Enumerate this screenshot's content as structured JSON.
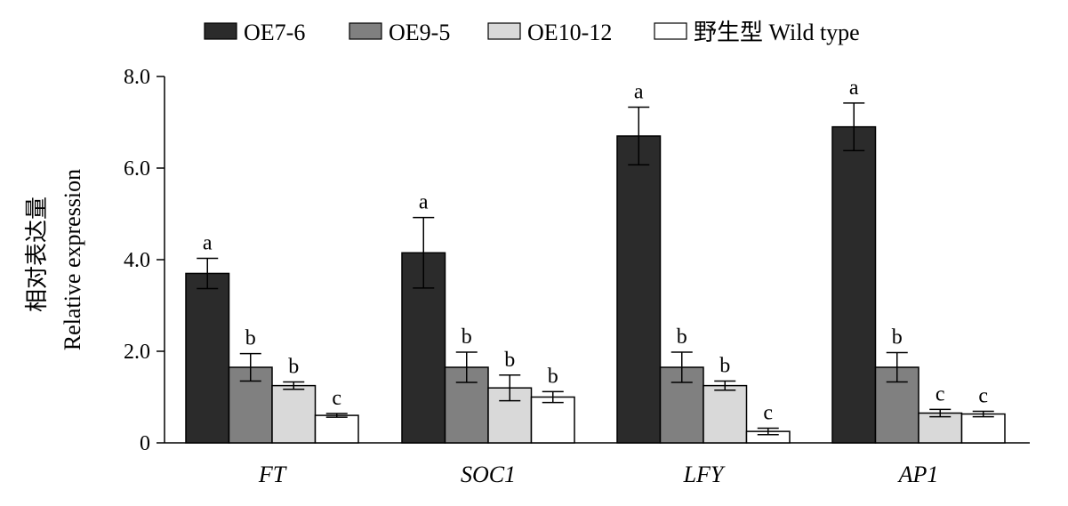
{
  "chart_data": {
    "type": "bar",
    "title": "",
    "xlabel": "",
    "ylabel_line1": "相对表达量",
    "ylabel_line2": "Relative expression",
    "ylim": [
      0,
      8
    ],
    "yticks": [
      {
        "value": 0,
        "label": "0"
      },
      {
        "value": 2,
        "label": "2.0"
      },
      {
        "value": 4,
        "label": "4.0"
      },
      {
        "value": 6,
        "label": "6.0"
      },
      {
        "value": 8,
        "label": "8.0"
      }
    ],
    "categories": [
      "FT",
      "SOC1",
      "LFY",
      "AP1"
    ],
    "legend_position": "top",
    "series": [
      {
        "name": "OE7-6",
        "color": "#2b2b2b",
        "values": [
          3.7,
          4.15,
          6.7,
          6.9
        ],
        "errors": [
          0.33,
          0.77,
          0.63,
          0.52
        ],
        "labels": [
          "a",
          "a",
          "a",
          "a"
        ]
      },
      {
        "name": "OE9-5",
        "color": "#808080",
        "values": [
          1.65,
          1.65,
          1.65,
          1.65
        ],
        "errors": [
          0.3,
          0.33,
          0.33,
          0.32
        ],
        "labels": [
          "b",
          "b",
          "b",
          "b"
        ]
      },
      {
        "name": "OE10-12",
        "color": "#d9d9d9",
        "values": [
          1.25,
          1.2,
          1.25,
          0.65
        ],
        "errors": [
          0.08,
          0.28,
          0.1,
          0.08
        ],
        "labels": [
          "b",
          "b",
          "b",
          "c"
        ]
      },
      {
        "name": "野生型 Wild type",
        "color": "#ffffff",
        "values": [
          0.6,
          1.0,
          0.25,
          0.63
        ],
        "errors": [
          0.04,
          0.12,
          0.07,
          0.06
        ],
        "labels": [
          "c",
          "b",
          "c",
          "c"
        ]
      }
    ]
  }
}
